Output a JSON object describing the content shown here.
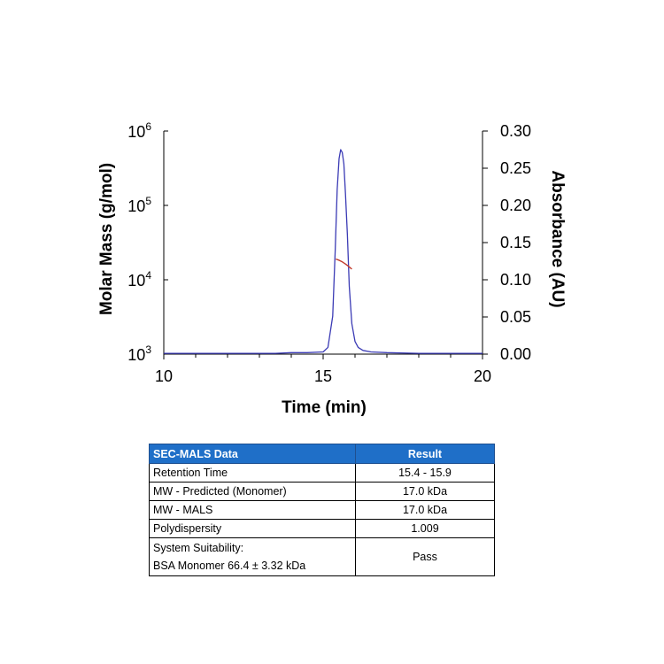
{
  "chart_data": {
    "type": "line",
    "xlabel": "Time (min)",
    "ylabel_left": "Molar Mass (g/mol)",
    "ylabel_right": "Absorbance (AU)",
    "xlim": [
      10,
      20
    ],
    "x_ticks": [
      "10",
      "15",
      "20"
    ],
    "y_left_scale": "log",
    "y_left_lim": [
      1000,
      1000000
    ],
    "y_left_ticks": [
      {
        "base": "10",
        "exp": "3"
      },
      {
        "base": "10",
        "exp": "4"
      },
      {
        "base": "10",
        "exp": "5"
      },
      {
        "base": "10",
        "exp": "6"
      }
    ],
    "y_right_lim": [
      0,
      0.3
    ],
    "y_right_ticks": [
      "0.00",
      "0.05",
      "0.10",
      "0.15",
      "0.20",
      "0.25",
      "0.30"
    ],
    "grid": false,
    "series": [
      {
        "axis": "right",
        "color": "#3b3bb5",
        "x": [
          10.0,
          12.0,
          13.5,
          14.0,
          14.5,
          15.0,
          15.15,
          15.3,
          15.38,
          15.44,
          15.5,
          15.55,
          15.6,
          15.65,
          15.7,
          15.76,
          15.82,
          15.9,
          16.0,
          16.1,
          16.25,
          16.5,
          17.0,
          18.0,
          19.0,
          20.0
        ],
        "y": [
          0.0,
          0.0,
          0.0,
          0.001,
          0.001,
          0.002,
          0.008,
          0.05,
          0.14,
          0.22,
          0.262,
          0.274,
          0.27,
          0.255,
          0.215,
          0.16,
          0.09,
          0.04,
          0.016,
          0.008,
          0.004,
          0.002,
          0.001,
          0.0,
          0.0,
          0.0
        ]
      },
      {
        "axis": "left",
        "color": "#c0392b",
        "x": [
          15.4,
          15.5,
          15.6,
          15.7,
          15.8,
          15.9
        ],
        "y": [
          19000,
          18300,
          17400,
          16300,
          15100,
          13900
        ]
      }
    ]
  },
  "table": {
    "headers": [
      "SEC-MALS Data",
      "Result"
    ],
    "rows": [
      {
        "label": "Retention Time",
        "value": "15.4 - 15.9"
      },
      {
        "label": "MW - Predicted (Monomer)",
        "value": "17.0 kDa"
      },
      {
        "label": "MW - MALS",
        "value": "17.0 kDa"
      },
      {
        "label": "Polydispersity",
        "value": "1.009"
      }
    ],
    "last_row": {
      "label_line1": "System Suitability:",
      "label_line2": "BSA Monomer 66.4 ± 3.32 kDa",
      "value": "Pass"
    }
  }
}
